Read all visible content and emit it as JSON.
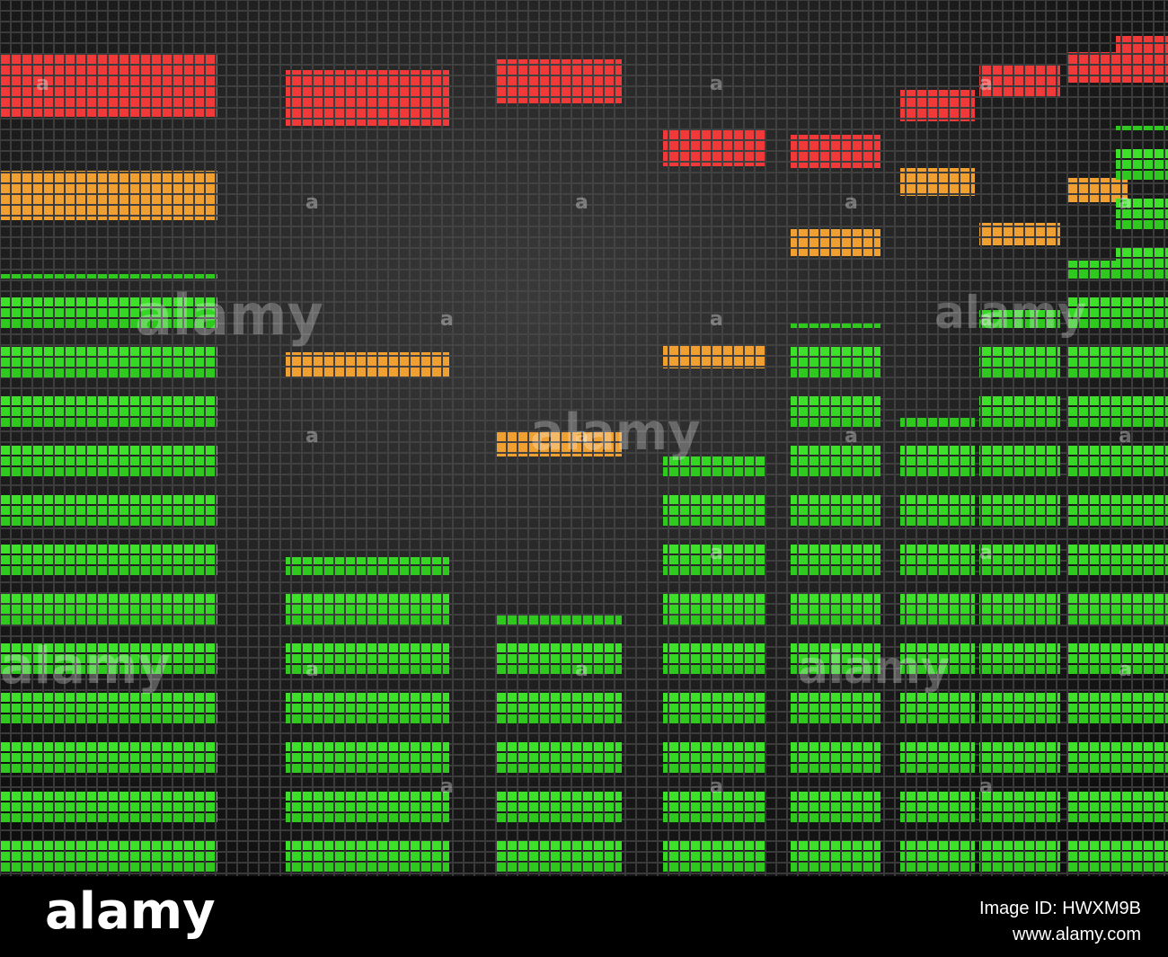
{
  "watermark": "alamy",
  "watermark_mark": "a",
  "footer": {
    "brand": "alamy",
    "image_id": "Image ID: HWXM9B",
    "url": "www.alamy.com"
  }
}
